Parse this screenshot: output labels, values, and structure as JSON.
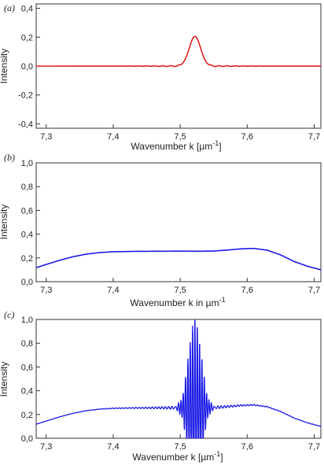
{
  "chart_data": [
    {
      "panel_label": "(a)",
      "type": "line",
      "xlabel_main": "Wavenumber k [µm",
      "xlabel_sup": "-1",
      "xlabel_tail": "]",
      "ylabel": "Intensity",
      "xlim": [
        7.285,
        7.71
      ],
      "ylim": [
        -0.43,
        0.43
      ],
      "x_ticks": [
        7.3,
        7.4,
        7.5,
        7.6,
        7.7
      ],
      "x_tick_labels": [
        "7,3",
        "7,4",
        "7,5",
        "7,6",
        "7,7"
      ],
      "y_ticks": [
        -0.4,
        -0.2,
        0.0,
        0.2,
        0.4
      ],
      "y_tick_labels": [
        "-0,4",
        "-0,2",
        "0,0",
        "0,2",
        "0,4"
      ],
      "grid": false,
      "series": [
        {
          "color": "#e0201c",
          "shape": "gaussian_peak",
          "baseline": 0.0,
          "peak_center": 7.522,
          "peak_height": 0.205,
          "peak_width": 0.0085,
          "side_ripple": 0.006,
          "side_ripple_freq": 0.012,
          "x": [
            7.285,
            7.45,
            7.49,
            7.505,
            7.515,
            7.522,
            7.53,
            7.54,
            7.555,
            7.6,
            7.71
          ],
          "y": [
            0.0,
            0.002,
            0.004,
            0.05,
            0.16,
            0.205,
            0.16,
            0.05,
            0.006,
            0.002,
            0.0
          ]
        }
      ]
    },
    {
      "panel_label": "(b)",
      "type": "line",
      "xlabel_main": "Wavenumber k in µm",
      "xlabel_sup": "-1",
      "xlabel_tail": "",
      "ylabel": "Intensity",
      "xlim": [
        7.285,
        7.71
      ],
      "ylim": [
        0.0,
        1.0
      ],
      "x_ticks": [
        7.3,
        7.4,
        7.5,
        7.6,
        7.7
      ],
      "x_tick_labels": [
        "7,3",
        "7,4",
        "7,5",
        "7,6",
        "7,7"
      ],
      "y_ticks": [
        0.0,
        0.2,
        0.4,
        0.6,
        0.8,
        1.0
      ],
      "y_tick_labels": [
        "0,0",
        "0,2",
        "0,4",
        "0,6",
        "0,8",
        "1,0"
      ],
      "grid": false,
      "series": [
        {
          "color": "#1a1ae6",
          "x": [
            7.285,
            7.3,
            7.32,
            7.34,
            7.36,
            7.38,
            7.4,
            7.43,
            7.46,
            7.5,
            7.53,
            7.55,
            7.57,
            7.59,
            7.61,
            7.63,
            7.65,
            7.67,
            7.69,
            7.71
          ],
          "y": [
            0.118,
            0.145,
            0.18,
            0.21,
            0.232,
            0.245,
            0.252,
            0.255,
            0.256,
            0.257,
            0.256,
            0.258,
            0.266,
            0.276,
            0.28,
            0.265,
            0.225,
            0.17,
            0.13,
            0.1
          ]
        }
      ]
    },
    {
      "panel_label": "(c)",
      "type": "line",
      "xlabel_main": "Wavenumber k [µm",
      "xlabel_sup": "-1",
      "xlabel_tail": "]",
      "ylabel": "Intensity",
      "xlim": [
        7.285,
        7.71
      ],
      "ylim": [
        0.0,
        1.0
      ],
      "x_ticks": [
        7.3,
        7.4,
        7.5,
        7.6,
        7.7
      ],
      "x_tick_labels": [
        "7,3",
        "7,4",
        "7,5",
        "7,6",
        "7,7"
      ],
      "y_ticks": [
        0.0,
        0.2,
        0.4,
        0.6,
        0.8,
        1.0
      ],
      "y_tick_labels": [
        "0,0",
        "0,2",
        "0,4",
        "0,6",
        "0,8",
        "1,0"
      ],
      "grid": false,
      "series": [
        {
          "color": "#1a1ae6",
          "shape": "envelope_with_interference",
          "envelope_x": [
            7.285,
            7.3,
            7.32,
            7.34,
            7.36,
            7.38,
            7.4,
            7.43,
            7.46,
            7.5,
            7.53,
            7.55,
            7.57,
            7.59,
            7.61,
            7.63,
            7.65,
            7.67,
            7.69,
            7.71
          ],
          "envelope_y": [
            0.118,
            0.145,
            0.18,
            0.21,
            0.232,
            0.245,
            0.252,
            0.255,
            0.256,
            0.257,
            0.256,
            0.258,
            0.266,
            0.276,
            0.28,
            0.265,
            0.225,
            0.17,
            0.13,
            0.1
          ],
          "fringe_center": 7.522,
          "fringe_peak": 1.0,
          "fringe_width": 0.0095,
          "fringe_period": 0.0035,
          "ripple_amplitude": 0.02
        }
      ]
    }
  ]
}
